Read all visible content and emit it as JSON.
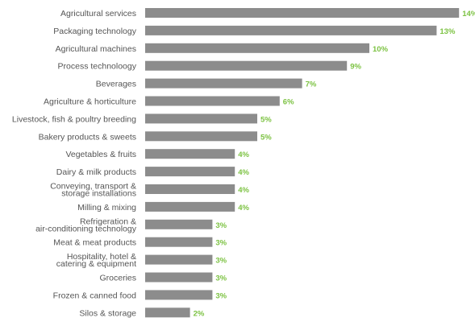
{
  "chart_data": {
    "type": "bar",
    "orientation": "horizontal",
    "categories": [
      "Agricultural services",
      "Packaging technology",
      "Agricultural machines",
      "Process technoloogy",
      "Beverages",
      "Agriculture & horticulture",
      "Livestock, fish & poultry breeding",
      "Bakery products & sweets",
      "Vegetables & fruits",
      "Dairy & milk products",
      "Conveying, transport & storage installations",
      "Milling & mixing",
      "Refrigeration & air-conditioning technology",
      "Meat & meat products",
      "Hospitality, hotel & catering & equipment",
      "Groceries",
      "Frozen & canned food",
      "Silos & storage"
    ],
    "category_lines": [
      [
        "Agricultural services"
      ],
      [
        "Packaging technology"
      ],
      [
        "Agricultural machines"
      ],
      [
        "Process technoloogy"
      ],
      [
        "Beverages"
      ],
      [
        "Agriculture & horticulture"
      ],
      [
        "Livestock, fish & poultry breeding"
      ],
      [
        "Bakery products & sweets"
      ],
      [
        "Vegetables & fruits"
      ],
      [
        "Dairy & milk products"
      ],
      [
        "Conveying, transport &",
        "storage installations"
      ],
      [
        "Milling & mixing"
      ],
      [
        "Refrigeration &",
        "air-conditioning technology"
      ],
      [
        "Meat & meat products"
      ],
      [
        "Hospitality, hotel &",
        "catering & equipment"
      ],
      [
        "Groceries"
      ],
      [
        "Frozen & canned food"
      ],
      [
        "Silos & storage"
      ]
    ],
    "values": [
      14,
      13,
      10,
      9,
      7,
      6,
      5,
      5,
      4,
      4,
      4,
      4,
      3,
      3,
      3,
      3,
      3,
      2
    ],
    "value_labels": [
      "14%",
      "13%",
      "10%",
      "9%",
      "7%",
      "6%",
      "5%",
      "5%",
      "4%",
      "4%",
      "4%",
      "4%",
      "3%",
      "3%",
      "3%",
      "3%",
      "3%",
      "2%"
    ],
    "unit": "%",
    "xlim": [
      0,
      14
    ],
    "grid": false,
    "legend": "none",
    "colors": {
      "bar": "#8c8c8c",
      "value_label": "#7cc242",
      "category_label": "#555555"
    }
  }
}
